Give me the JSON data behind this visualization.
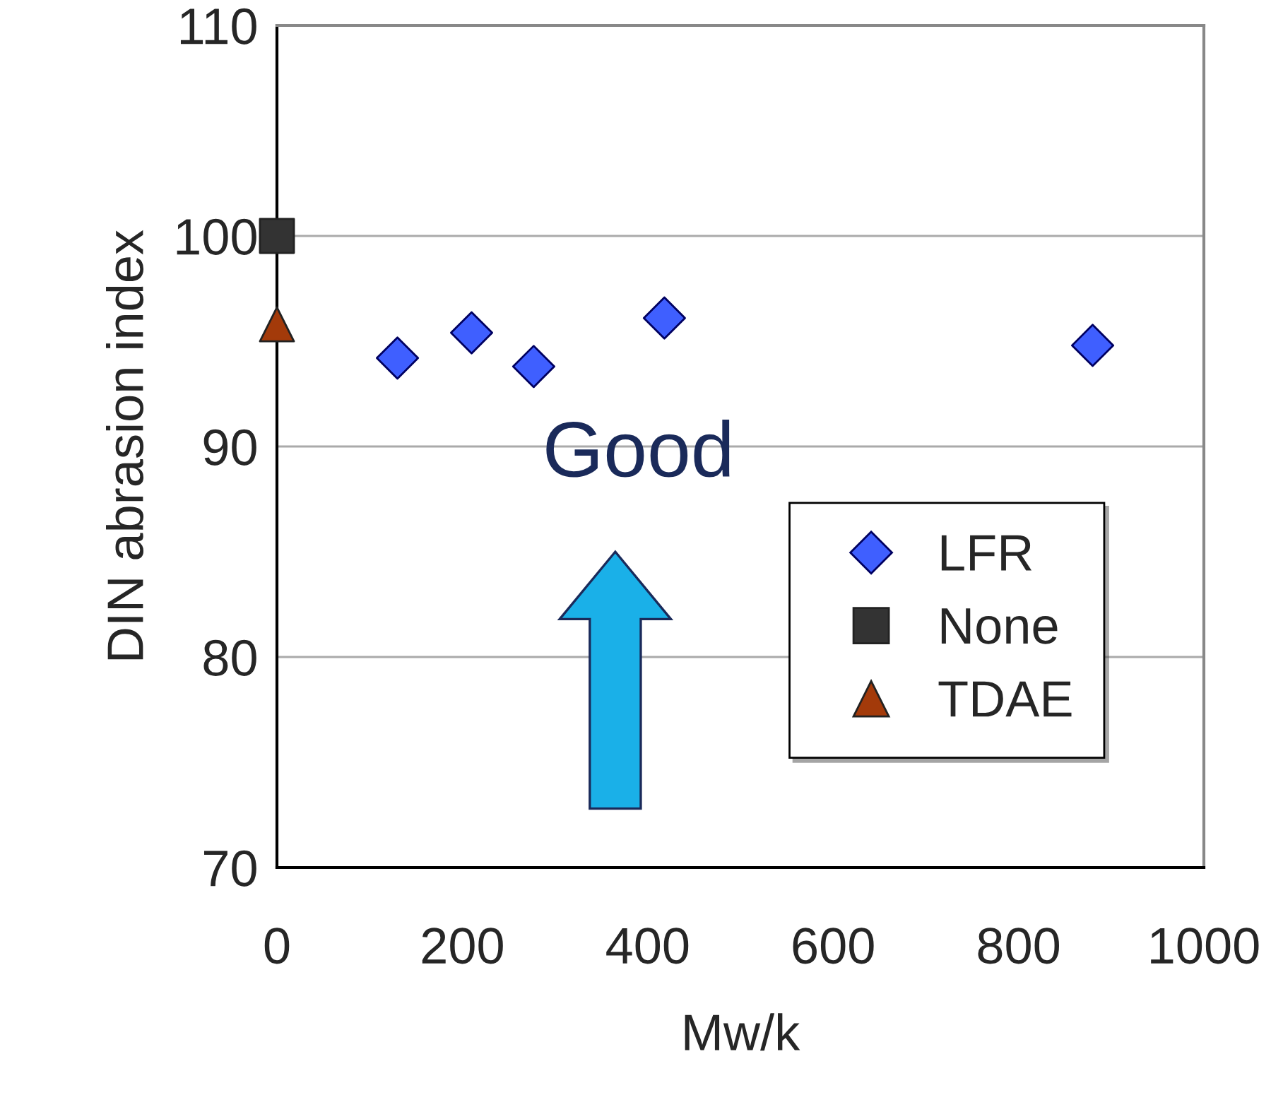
{
  "chart_data": {
    "type": "scatter",
    "xlabel": "Mw/k",
    "ylabel": "DIN abrasion index",
    "xlim": [
      0,
      1000
    ],
    "xticks": [
      0,
      200,
      400,
      600,
      800,
      1000
    ],
    "ylim": [
      70,
      110
    ],
    "yticks": [
      70,
      80,
      90,
      100,
      110
    ],
    "grid": "y",
    "legend": "bottom right",
    "annotations": [
      "Good"
    ],
    "series": [
      {
        "name": "LFR",
        "color": "#3f5fff",
        "marker": "diamond",
        "x": [
          130,
          210,
          277,
          418,
          880
        ],
        "values": [
          94.2,
          95.4,
          93.8,
          96.1,
          94.8
        ]
      },
      {
        "name": "None",
        "color": "#333333",
        "marker": "square",
        "x": [
          0
        ],
        "values": [
          100
        ]
      },
      {
        "name": "TDAE",
        "color": "#a33a0a",
        "marker": "triangle",
        "x": [
          0
        ],
        "values": [
          95.8
        ]
      }
    ]
  }
}
